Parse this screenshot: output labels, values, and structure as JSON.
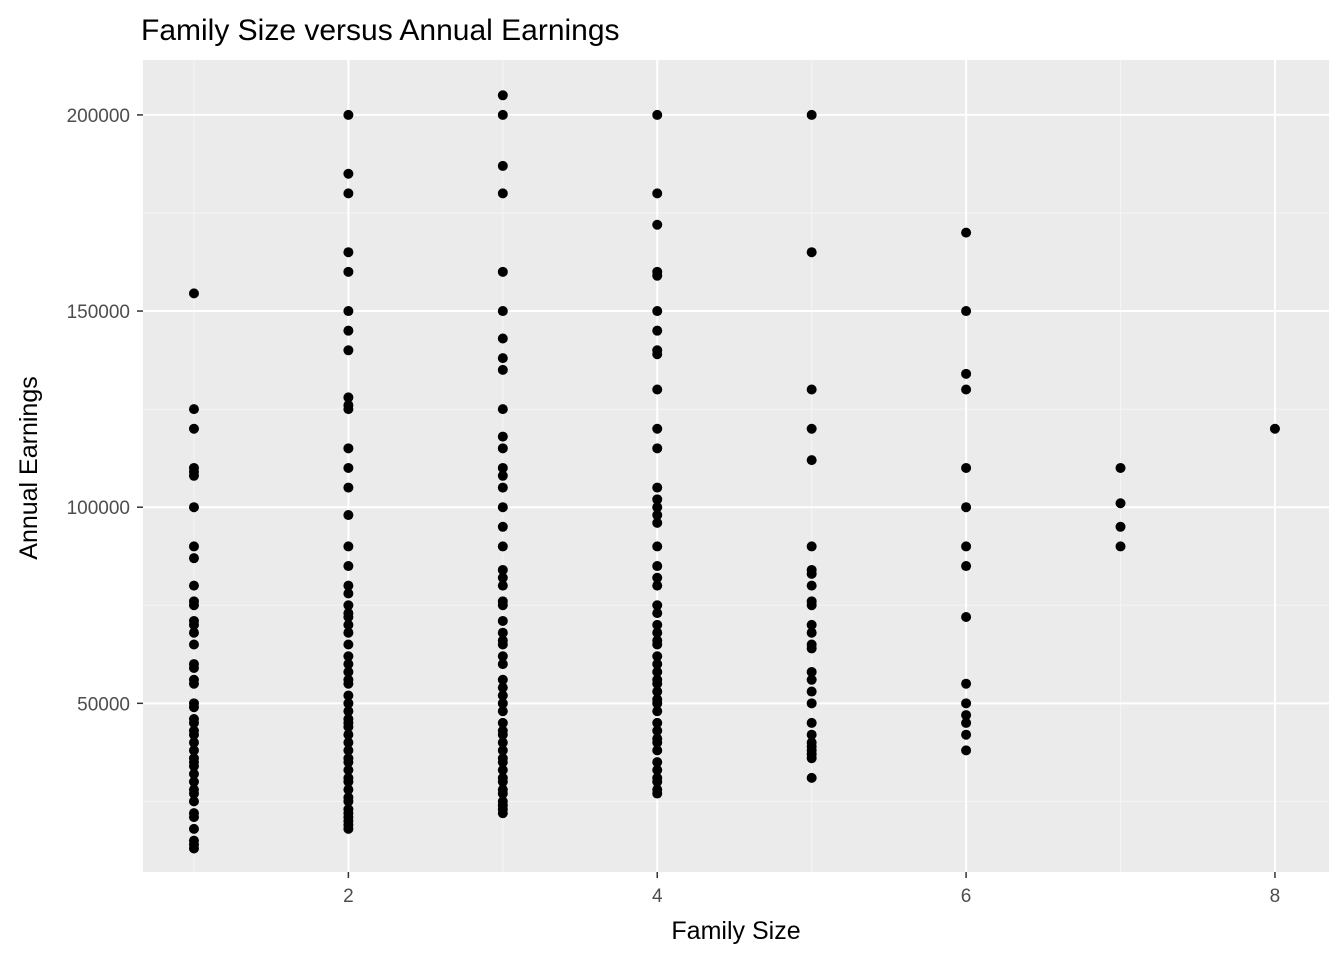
{
  "chart_data": {
    "type": "scatter",
    "title": "Family Size versus Annual Earnings",
    "xlabel": "Family Size",
    "ylabel": "Annual Earnings",
    "xlim": [
      0.67,
      8.35
    ],
    "ylim": [
      7000,
      214000
    ],
    "xticks": [
      2,
      4,
      6,
      8
    ],
    "xtick_labels": [
      "2",
      "4",
      "6",
      "8"
    ],
    "yticks": [
      50000,
      100000,
      150000,
      200000
    ],
    "ytick_labels": [
      "50000",
      "100000",
      "150000",
      "200000"
    ],
    "grid": true,
    "legend": "none",
    "colors": {
      "panel_background": "#ebebeb",
      "grid_major": "#ffffff",
      "grid_minor": "#f5f5f5",
      "point": "#000000"
    },
    "points": [
      {
        "x": 1,
        "y": 154500
      },
      {
        "x": 1,
        "y": 125000
      },
      {
        "x": 1,
        "y": 120000
      },
      {
        "x": 1,
        "y": 110000
      },
      {
        "x": 1,
        "y": 109000
      },
      {
        "x": 1,
        "y": 108000
      },
      {
        "x": 1,
        "y": 100000
      },
      {
        "x": 1,
        "y": 90000
      },
      {
        "x": 1,
        "y": 87000
      },
      {
        "x": 1,
        "y": 80000
      },
      {
        "x": 1,
        "y": 76000
      },
      {
        "x": 1,
        "y": 75000
      },
      {
        "x": 1,
        "y": 71000
      },
      {
        "x": 1,
        "y": 70000
      },
      {
        "x": 1,
        "y": 68000
      },
      {
        "x": 1,
        "y": 65000
      },
      {
        "x": 1,
        "y": 60000
      },
      {
        "x": 1,
        "y": 59000
      },
      {
        "x": 1,
        "y": 56000
      },
      {
        "x": 1,
        "y": 55000
      },
      {
        "x": 1,
        "y": 50000
      },
      {
        "x": 1,
        "y": 49000
      },
      {
        "x": 1,
        "y": 46000
      },
      {
        "x": 1,
        "y": 45000
      },
      {
        "x": 1,
        "y": 43000
      },
      {
        "x": 1,
        "y": 42000
      },
      {
        "x": 1,
        "y": 40000
      },
      {
        "x": 1,
        "y": 38000
      },
      {
        "x": 1,
        "y": 36000
      },
      {
        "x": 1,
        "y": 35000
      },
      {
        "x": 1,
        "y": 34000
      },
      {
        "x": 1,
        "y": 32000
      },
      {
        "x": 1,
        "y": 30000
      },
      {
        "x": 1,
        "y": 28000
      },
      {
        "x": 1,
        "y": 27000
      },
      {
        "x": 1,
        "y": 25000
      },
      {
        "x": 1,
        "y": 22000
      },
      {
        "x": 1,
        "y": 21000
      },
      {
        "x": 1,
        "y": 18000
      },
      {
        "x": 1,
        "y": 15000
      },
      {
        "x": 1,
        "y": 14000
      },
      {
        "x": 1,
        "y": 13000
      },
      {
        "x": 2,
        "y": 200000
      },
      {
        "x": 2,
        "y": 185000
      },
      {
        "x": 2,
        "y": 180000
      },
      {
        "x": 2,
        "y": 165000
      },
      {
        "x": 2,
        "y": 160000
      },
      {
        "x": 2,
        "y": 150000
      },
      {
        "x": 2,
        "y": 145000
      },
      {
        "x": 2,
        "y": 140000
      },
      {
        "x": 2,
        "y": 128000
      },
      {
        "x": 2,
        "y": 126000
      },
      {
        "x": 2,
        "y": 125000
      },
      {
        "x": 2,
        "y": 115000
      },
      {
        "x": 2,
        "y": 110000
      },
      {
        "x": 2,
        "y": 105000
      },
      {
        "x": 2,
        "y": 98000
      },
      {
        "x": 2,
        "y": 90000
      },
      {
        "x": 2,
        "y": 85000
      },
      {
        "x": 2,
        "y": 80000
      },
      {
        "x": 2,
        "y": 78000
      },
      {
        "x": 2,
        "y": 75000
      },
      {
        "x": 2,
        "y": 73000
      },
      {
        "x": 2,
        "y": 72000
      },
      {
        "x": 2,
        "y": 70000
      },
      {
        "x": 2,
        "y": 68000
      },
      {
        "x": 2,
        "y": 65000
      },
      {
        "x": 2,
        "y": 62000
      },
      {
        "x": 2,
        "y": 60000
      },
      {
        "x": 2,
        "y": 58000
      },
      {
        "x": 2,
        "y": 56000
      },
      {
        "x": 2,
        "y": 55000
      },
      {
        "x": 2,
        "y": 52000
      },
      {
        "x": 2,
        "y": 50000
      },
      {
        "x": 2,
        "y": 48000
      },
      {
        "x": 2,
        "y": 46000
      },
      {
        "x": 2,
        "y": 45000
      },
      {
        "x": 2,
        "y": 44000
      },
      {
        "x": 2,
        "y": 42000
      },
      {
        "x": 2,
        "y": 40000
      },
      {
        "x": 2,
        "y": 38000
      },
      {
        "x": 2,
        "y": 36000
      },
      {
        "x": 2,
        "y": 35000
      },
      {
        "x": 2,
        "y": 33000
      },
      {
        "x": 2,
        "y": 31000
      },
      {
        "x": 2,
        "y": 30000
      },
      {
        "x": 2,
        "y": 28000
      },
      {
        "x": 2,
        "y": 26000
      },
      {
        "x": 2,
        "y": 25000
      },
      {
        "x": 2,
        "y": 23000
      },
      {
        "x": 2,
        "y": 22000
      },
      {
        "x": 2,
        "y": 21000
      },
      {
        "x": 2,
        "y": 20000
      },
      {
        "x": 2,
        "y": 19000
      },
      {
        "x": 2,
        "y": 18000
      },
      {
        "x": 3,
        "y": 205000
      },
      {
        "x": 3,
        "y": 200000
      },
      {
        "x": 3,
        "y": 187000
      },
      {
        "x": 3,
        "y": 180000
      },
      {
        "x": 3,
        "y": 160000
      },
      {
        "x": 3,
        "y": 150000
      },
      {
        "x": 3,
        "y": 143000
      },
      {
        "x": 3,
        "y": 138000
      },
      {
        "x": 3,
        "y": 135000
      },
      {
        "x": 3,
        "y": 125000
      },
      {
        "x": 3,
        "y": 118000
      },
      {
        "x": 3,
        "y": 115000
      },
      {
        "x": 3,
        "y": 110000
      },
      {
        "x": 3,
        "y": 108000
      },
      {
        "x": 3,
        "y": 105000
      },
      {
        "x": 3,
        "y": 100000
      },
      {
        "x": 3,
        "y": 95000
      },
      {
        "x": 3,
        "y": 90000
      },
      {
        "x": 3,
        "y": 84000
      },
      {
        "x": 3,
        "y": 82000
      },
      {
        "x": 3,
        "y": 80000
      },
      {
        "x": 3,
        "y": 76000
      },
      {
        "x": 3,
        "y": 75000
      },
      {
        "x": 3,
        "y": 71000
      },
      {
        "x": 3,
        "y": 68000
      },
      {
        "x": 3,
        "y": 66000
      },
      {
        "x": 3,
        "y": 65000
      },
      {
        "x": 3,
        "y": 62000
      },
      {
        "x": 3,
        "y": 60000
      },
      {
        "x": 3,
        "y": 56000
      },
      {
        "x": 3,
        "y": 54000
      },
      {
        "x": 3,
        "y": 52000
      },
      {
        "x": 3,
        "y": 50000
      },
      {
        "x": 3,
        "y": 48000
      },
      {
        "x": 3,
        "y": 45000
      },
      {
        "x": 3,
        "y": 43000
      },
      {
        "x": 3,
        "y": 42000
      },
      {
        "x": 3,
        "y": 40000
      },
      {
        "x": 3,
        "y": 38000
      },
      {
        "x": 3,
        "y": 36000
      },
      {
        "x": 3,
        "y": 35000
      },
      {
        "x": 3,
        "y": 33000
      },
      {
        "x": 3,
        "y": 31000
      },
      {
        "x": 3,
        "y": 30000
      },
      {
        "x": 3,
        "y": 28000
      },
      {
        "x": 3,
        "y": 27000
      },
      {
        "x": 3,
        "y": 25000
      },
      {
        "x": 3,
        "y": 24000
      },
      {
        "x": 3,
        "y": 23000
      },
      {
        "x": 3,
        "y": 22000
      },
      {
        "x": 4,
        "y": 200000
      },
      {
        "x": 4,
        "y": 180000
      },
      {
        "x": 4,
        "y": 172000
      },
      {
        "x": 4,
        "y": 160000
      },
      {
        "x": 4,
        "y": 159000
      },
      {
        "x": 4,
        "y": 150000
      },
      {
        "x": 4,
        "y": 145000
      },
      {
        "x": 4,
        "y": 140000
      },
      {
        "x": 4,
        "y": 139000
      },
      {
        "x": 4,
        "y": 130000
      },
      {
        "x": 4,
        "y": 120000
      },
      {
        "x": 4,
        "y": 115000
      },
      {
        "x": 4,
        "y": 105000
      },
      {
        "x": 4,
        "y": 102000
      },
      {
        "x": 4,
        "y": 100000
      },
      {
        "x": 4,
        "y": 98000
      },
      {
        "x": 4,
        "y": 96000
      },
      {
        "x": 4,
        "y": 90000
      },
      {
        "x": 4,
        "y": 85000
      },
      {
        "x": 4,
        "y": 82000
      },
      {
        "x": 4,
        "y": 80000
      },
      {
        "x": 4,
        "y": 75000
      },
      {
        "x": 4,
        "y": 73000
      },
      {
        "x": 4,
        "y": 70000
      },
      {
        "x": 4,
        "y": 68000
      },
      {
        "x": 4,
        "y": 66000
      },
      {
        "x": 4,
        "y": 65000
      },
      {
        "x": 4,
        "y": 62000
      },
      {
        "x": 4,
        "y": 60000
      },
      {
        "x": 4,
        "y": 58000
      },
      {
        "x": 4,
        "y": 56000
      },
      {
        "x": 4,
        "y": 55000
      },
      {
        "x": 4,
        "y": 53000
      },
      {
        "x": 4,
        "y": 51000
      },
      {
        "x": 4,
        "y": 50000
      },
      {
        "x": 4,
        "y": 48000
      },
      {
        "x": 4,
        "y": 45000
      },
      {
        "x": 4,
        "y": 43000
      },
      {
        "x": 4,
        "y": 41000
      },
      {
        "x": 4,
        "y": 40000
      },
      {
        "x": 4,
        "y": 38000
      },
      {
        "x": 4,
        "y": 35000
      },
      {
        "x": 4,
        "y": 33000
      },
      {
        "x": 4,
        "y": 31000
      },
      {
        "x": 4,
        "y": 30000
      },
      {
        "x": 4,
        "y": 28000
      },
      {
        "x": 4,
        "y": 27000
      },
      {
        "x": 5,
        "y": 200000
      },
      {
        "x": 5,
        "y": 165000
      },
      {
        "x": 5,
        "y": 130000
      },
      {
        "x": 5,
        "y": 120000
      },
      {
        "x": 5,
        "y": 112000
      },
      {
        "x": 5,
        "y": 90000
      },
      {
        "x": 5,
        "y": 84000
      },
      {
        "x": 5,
        "y": 83000
      },
      {
        "x": 5,
        "y": 80000
      },
      {
        "x": 5,
        "y": 76000
      },
      {
        "x": 5,
        "y": 75000
      },
      {
        "x": 5,
        "y": 70000
      },
      {
        "x": 5,
        "y": 68000
      },
      {
        "x": 5,
        "y": 65000
      },
      {
        "x": 5,
        "y": 64000
      },
      {
        "x": 5,
        "y": 58000
      },
      {
        "x": 5,
        "y": 56000
      },
      {
        "x": 5,
        "y": 53000
      },
      {
        "x": 5,
        "y": 50000
      },
      {
        "x": 5,
        "y": 45000
      },
      {
        "x": 5,
        "y": 42000
      },
      {
        "x": 5,
        "y": 40000
      },
      {
        "x": 5,
        "y": 39000
      },
      {
        "x": 5,
        "y": 38000
      },
      {
        "x": 5,
        "y": 37000
      },
      {
        "x": 5,
        "y": 36000
      },
      {
        "x": 5,
        "y": 31000
      },
      {
        "x": 6,
        "y": 170000
      },
      {
        "x": 6,
        "y": 150000
      },
      {
        "x": 6,
        "y": 134000
      },
      {
        "x": 6,
        "y": 130000
      },
      {
        "x": 6,
        "y": 110000
      },
      {
        "x": 6,
        "y": 100000
      },
      {
        "x": 6,
        "y": 90000
      },
      {
        "x": 6,
        "y": 85000
      },
      {
        "x": 6,
        "y": 72000
      },
      {
        "x": 6,
        "y": 55000
      },
      {
        "x": 6,
        "y": 50000
      },
      {
        "x": 6,
        "y": 47000
      },
      {
        "x": 6,
        "y": 45000
      },
      {
        "x": 6,
        "y": 42000
      },
      {
        "x": 6,
        "y": 38000
      },
      {
        "x": 7,
        "y": 110000
      },
      {
        "x": 7,
        "y": 101000
      },
      {
        "x": 7,
        "y": 95000
      },
      {
        "x": 7,
        "y": 90000
      },
      {
        "x": 8,
        "y": 120000
      }
    ]
  }
}
